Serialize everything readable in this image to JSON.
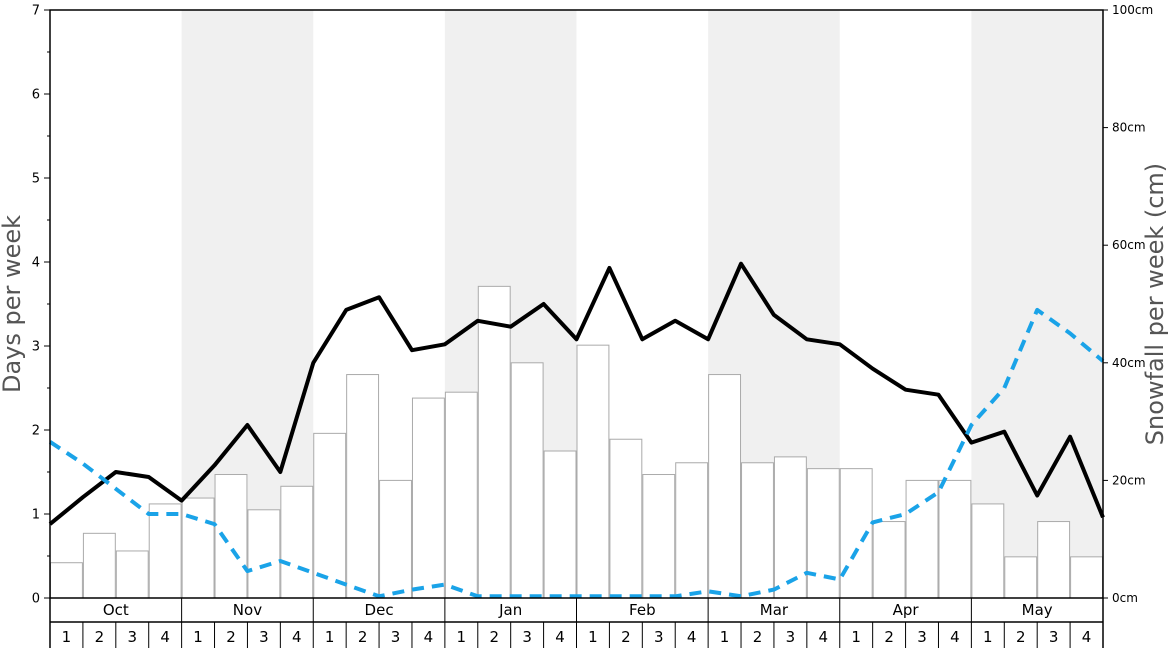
{
  "chart_data": {
    "type": "bar",
    "months": [
      "Oct",
      "Nov",
      "Dec",
      "Jan",
      "Feb",
      "Mar",
      "Apr",
      "May"
    ],
    "weeks": [
      "1",
      "2",
      "3",
      "4"
    ],
    "ylabel_left": "Days per week",
    "ylabel_right": "Snowfall per week (cm)",
    "ylim_left": [
      0,
      7
    ],
    "ylim_right": [
      0,
      100
    ],
    "left_ticks": [
      "0",
      "1",
      "2",
      "3",
      "4",
      "5",
      "6",
      "7"
    ],
    "right_ticks": [
      "0cm",
      "20cm",
      "40cm",
      "60cm",
      "80cm",
      "100cm"
    ],
    "colors": {
      "bar_fill": "#ffffff",
      "bar_stroke": "#aaaaaa",
      "line_solid": "#000000",
      "line_dashed": "#1aa3e8",
      "band": "#f0f0f0"
    },
    "series": [
      {
        "type": "bar",
        "axis": "right",
        "values": [
          6,
          11,
          8,
          16,
          17,
          21,
          15,
          19,
          28,
          38,
          20,
          34,
          35,
          53,
          40,
          25,
          43,
          27,
          21,
          23,
          38,
          23,
          24,
          22,
          22,
          13,
          20,
          20,
          16,
          7,
          13,
          7
        ]
      },
      {
        "type": "line",
        "style": "solid",
        "axis": "left",
        "values": [
          0.88,
          1.2,
          1.5,
          1.44,
          1.16,
          1.58,
          2.06,
          1.5,
          2.8,
          3.43,
          3.58,
          2.95,
          3.02,
          3.3,
          3.23,
          3.5,
          3.08,
          3.93,
          3.08,
          3.3,
          3.08,
          3.98,
          3.37,
          3.08,
          3.02,
          2.73,
          2.48,
          2.42,
          1.85,
          1.98,
          1.22,
          1.92,
          0.96
        ]
      },
      {
        "type": "line",
        "style": "dashed",
        "axis": "left",
        "values": [
          1.86,
          1.6,
          1.3,
          1.0,
          1.0,
          0.88,
          0.32,
          0.44,
          0.3,
          0.16,
          0.02,
          0.1,
          0.16,
          0.02,
          0.02,
          0.02,
          0.02,
          0.02,
          0.02,
          0.02,
          0.08,
          0.02,
          0.1,
          0.3,
          0.22,
          0.9,
          1.0,
          1.26,
          2.06,
          2.5,
          3.43,
          3.15,
          2.82
        ]
      }
    ]
  }
}
